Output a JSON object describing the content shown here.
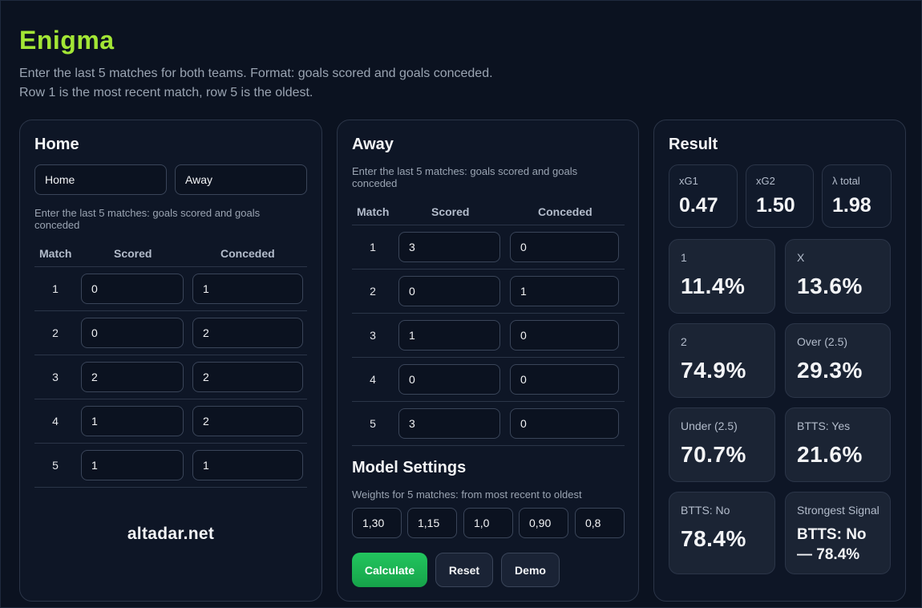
{
  "app": {
    "title": "Enigma",
    "intro_line1": "Enter the last 5 matches for both teams. Format: goals scored and goals conceded.",
    "intro_line2": "Row 1 is the most recent match, row 5 is the oldest."
  },
  "home": {
    "heading": "Home",
    "home_name_value": "Home",
    "away_name_value": "Away",
    "hint": "Enter the last 5 matches: goals scored and goals conceded",
    "columns": [
      "Match",
      "Scored",
      "Conceded"
    ],
    "rows": [
      {
        "match": "1",
        "scored": "0",
        "conceded": "1"
      },
      {
        "match": "2",
        "scored": "0",
        "conceded": "2"
      },
      {
        "match": "3",
        "scored": "2",
        "conceded": "2"
      },
      {
        "match": "4",
        "scored": "1",
        "conceded": "2"
      },
      {
        "match": "5",
        "scored": "1",
        "conceded": "1"
      }
    ],
    "brand": "altadar.net"
  },
  "away": {
    "heading": "Away",
    "hint": "Enter the last 5 matches: goals scored and goals conceded",
    "columns": [
      "Match",
      "Scored",
      "Conceded"
    ],
    "rows": [
      {
        "match": "1",
        "scored": "3",
        "conceded": "0"
      },
      {
        "match": "2",
        "scored": "0",
        "conceded": "1"
      },
      {
        "match": "3",
        "scored": "1",
        "conceded": "0"
      },
      {
        "match": "4",
        "scored": "0",
        "conceded": "0"
      },
      {
        "match": "5",
        "scored": "3",
        "conceded": "0"
      }
    ],
    "settings_title": "Model Settings",
    "weights_hint": "Weights for 5 matches: from most recent to oldest",
    "weights": [
      "1,30",
      "1,15",
      "1,0",
      "0,90",
      "0,8"
    ],
    "buttons": {
      "calculate": "Calculate",
      "reset": "Reset",
      "demo": "Demo"
    }
  },
  "result": {
    "heading": "Result",
    "stats": [
      {
        "label": "xG1",
        "value": "0.47"
      },
      {
        "label": "xG2",
        "value": "1.50"
      },
      {
        "label": "λ total",
        "value": "1.98"
      }
    ],
    "cards": [
      {
        "label": "1",
        "value": "11.4%"
      },
      {
        "label": "X",
        "value": "13.6%"
      },
      {
        "label": "2",
        "value": "74.9%"
      },
      {
        "label": "Over (2.5)",
        "value": "29.3%"
      },
      {
        "label": "Under (2.5)",
        "value": "70.7%"
      },
      {
        "label": "BTTS: Yes",
        "value": "21.6%"
      },
      {
        "label": "BTTS: No",
        "value": "78.4%"
      },
      {
        "label": "Strongest Signal",
        "value": "BTTS: No — 78.4%"
      }
    ]
  },
  "colors": {
    "accent": "#a3e635",
    "primary_button": "#22c55e",
    "background": "#0b1220"
  }
}
